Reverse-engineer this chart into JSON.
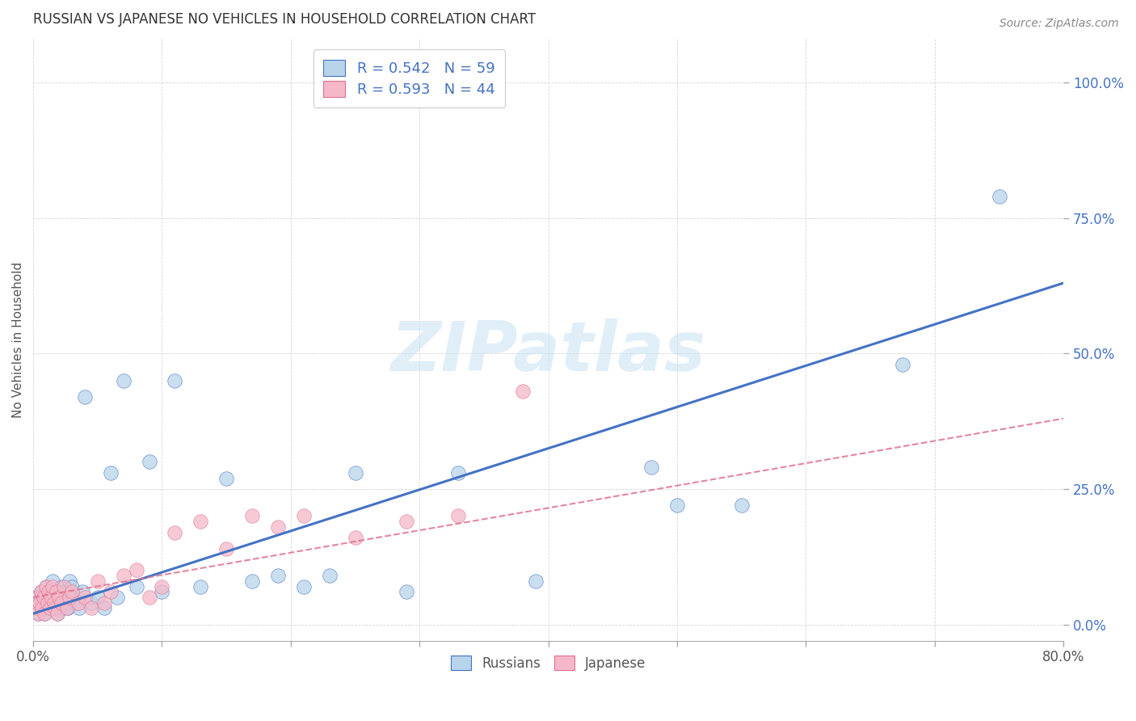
{
  "title": "RUSSIAN VS JAPANESE NO VEHICLES IN HOUSEHOLD CORRELATION CHART",
  "source": "Source: ZipAtlas.com",
  "ylabel": "No Vehicles in Household",
  "ytick_labels": [
    "0.0%",
    "25.0%",
    "50.0%",
    "75.0%",
    "100.0%"
  ],
  "ytick_values": [
    0,
    25,
    50,
    75,
    100
  ],
  "xlim": [
    0,
    80
  ],
  "ylim": [
    -3,
    108
  ],
  "legend_russian": "R = 0.542   N = 59",
  "legend_japanese": "R = 0.593   N = 44",
  "color_russian": "#b8d4ea",
  "color_japanese": "#f4b8c8",
  "color_russian_line": "#4472c4",
  "color_japanese_line": "#e07090",
  "watermark": "ZIPatlas",
  "russian_line_x": [
    0,
    80
  ],
  "russian_line_y": [
    2,
    63
  ],
  "japanese_line_x": [
    0,
    80
  ],
  "japanese_line_y": [
    5,
    38
  ],
  "russian_x": [
    0.2,
    0.3,
    0.4,
    0.5,
    0.6,
    0.7,
    0.8,
    0.9,
    1.0,
    1.1,
    1.2,
    1.3,
    1.4,
    1.5,
    1.6,
    1.7,
    1.8,
    1.9,
    2.0,
    2.1,
    2.2,
    2.3,
    2.4,
    2.5,
    2.6,
    2.7,
    2.8,
    2.9,
    3.0,
    3.2,
    3.4,
    3.6,
    3.8,
    4.0,
    4.5,
    5.0,
    5.5,
    6.0,
    6.5,
    7.0,
    8.0,
    9.0,
    10.0,
    11.0,
    13.0,
    15.0,
    17.0,
    19.0,
    21.0,
    23.0,
    25.0,
    29.0,
    33.0,
    39.0,
    48.0,
    50.0,
    55.0,
    67.5,
    75.0
  ],
  "russian_y": [
    3,
    5,
    2,
    4,
    6,
    3,
    5,
    2,
    7,
    4,
    6,
    3,
    5,
    8,
    4,
    3,
    6,
    2,
    5,
    4,
    7,
    3,
    5,
    6,
    4,
    3,
    8,
    5,
    7,
    5,
    4,
    3,
    6,
    42,
    4,
    5,
    3,
    28,
    5,
    45,
    7,
    30,
    6,
    45,
    7,
    27,
    8,
    9,
    7,
    9,
    28,
    6,
    28,
    8,
    29,
    22,
    22,
    48,
    79
  ],
  "japanese_x": [
    0.2,
    0.3,
    0.4,
    0.5,
    0.6,
    0.7,
    0.8,
    0.9,
    1.0,
    1.1,
    1.2,
    1.3,
    1.4,
    1.5,
    1.6,
    1.7,
    1.8,
    1.9,
    2.0,
    2.2,
    2.4,
    2.6,
    2.8,
    3.0,
    3.5,
    4.0,
    4.5,
    5.0,
    5.5,
    6.0,
    7.0,
    8.0,
    9.0,
    10.0,
    11.0,
    13.0,
    15.0,
    17.0,
    19.0,
    21.0,
    25.0,
    29.0,
    33.0,
    38.0
  ],
  "japanese_y": [
    3,
    5,
    2,
    4,
    6,
    3,
    5,
    2,
    7,
    4,
    6,
    3,
    5,
    7,
    4,
    3,
    6,
    2,
    5,
    4,
    7,
    3,
    5,
    6,
    4,
    5,
    3,
    8,
    4,
    6,
    9,
    10,
    5,
    7,
    17,
    19,
    14,
    20,
    18,
    20,
    16,
    19,
    20,
    43
  ]
}
